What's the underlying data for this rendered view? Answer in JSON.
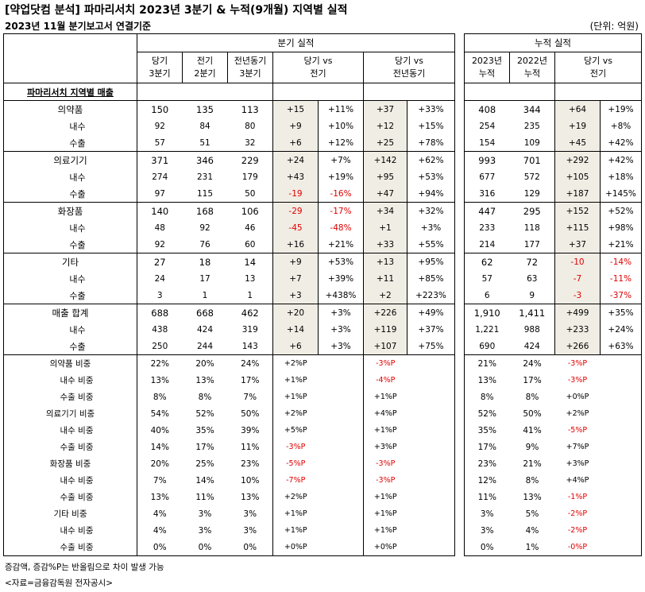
{
  "title": "[약업닷컴 분석] 파마리서치 2023년 3분기 & 누적(9개월) 지역별 실적",
  "subtitle": "2023년 11월 분기보고서 연결기준",
  "unit": "(단위: 억원)",
  "left_group_header": "분기 실적",
  "right_group_header": "누적 실적",
  "left_headers": [
    [
      "당기",
      "3분기"
    ],
    [
      "전기",
      "2분기"
    ],
    [
      "전년동기",
      "3분기"
    ],
    [
      "당기 vs",
      "전기"
    ],
    [
      "당기 vs",
      "전년동기"
    ]
  ],
  "right_headers": [
    [
      "2023년",
      "누적"
    ],
    [
      "2022년",
      "누적"
    ],
    [
      "당기 vs",
      "전기"
    ]
  ],
  "section_title": "파마리서치 지역별 매출",
  "rows": [
    {
      "label": "의약품",
      "main": true,
      "q": [
        "150",
        "135",
        "113"
      ],
      "qp": [
        "+15",
        "+11%"
      ],
      "qy": [
        "+37",
        "+33%"
      ],
      "c": [
        "408",
        "344"
      ],
      "cd": [
        "+64",
        "+19%"
      ]
    },
    {
      "label": "내수",
      "main": false,
      "q": [
        "92",
        "84",
        "80"
      ],
      "qp": [
        "+9",
        "+10%"
      ],
      "qy": [
        "+12",
        "+15%"
      ],
      "c": [
        "254",
        "235"
      ],
      "cd": [
        "+19",
        "+8%"
      ]
    },
    {
      "label": "수출",
      "main": false,
      "q": [
        "57",
        "51",
        "32"
      ],
      "qp": [
        "+6",
        "+12%"
      ],
      "qy": [
        "+25",
        "+78%"
      ],
      "c": [
        "154",
        "109"
      ],
      "cd": [
        "+45",
        "+42%"
      ]
    },
    {
      "label": "의료기기",
      "main": true,
      "q": [
        "371",
        "346",
        "229"
      ],
      "qp": [
        "+24",
        "+7%"
      ],
      "qy": [
        "+142",
        "+62%"
      ],
      "c": [
        "993",
        "701"
      ],
      "cd": [
        "+292",
        "+42%"
      ]
    },
    {
      "label": "내수",
      "main": false,
      "q": [
        "274",
        "231",
        "179"
      ],
      "qp": [
        "+43",
        "+19%"
      ],
      "qy": [
        "+95",
        "+53%"
      ],
      "c": [
        "677",
        "572"
      ],
      "cd": [
        "+105",
        "+18%"
      ]
    },
    {
      "label": "수출",
      "main": false,
      "q": [
        "97",
        "115",
        "50"
      ],
      "qp": [
        "-19",
        "-16%"
      ],
      "qy": [
        "+47",
        "+94%"
      ],
      "c": [
        "316",
        "129"
      ],
      "cd": [
        "+187",
        "+145%"
      ]
    },
    {
      "label": "화장품",
      "main": true,
      "q": [
        "140",
        "168",
        "106"
      ],
      "qp": [
        "-29",
        "-17%"
      ],
      "qy": [
        "+34",
        "+32%"
      ],
      "c": [
        "447",
        "295"
      ],
      "cd": [
        "+152",
        "+52%"
      ]
    },
    {
      "label": "내수",
      "main": false,
      "q": [
        "48",
        "92",
        "46"
      ],
      "qp": [
        "-45",
        "-48%"
      ],
      "qy": [
        "+1",
        "+3%"
      ],
      "c": [
        "233",
        "118"
      ],
      "cd": [
        "+115",
        "+98%"
      ]
    },
    {
      "label": "수출",
      "main": false,
      "q": [
        "92",
        "76",
        "60"
      ],
      "qp": [
        "+16",
        "+21%"
      ],
      "qy": [
        "+33",
        "+55%"
      ],
      "c": [
        "214",
        "177"
      ],
      "cd": [
        "+37",
        "+21%"
      ]
    },
    {
      "label": "기타",
      "main": true,
      "q": [
        "27",
        "18",
        "14"
      ],
      "qp": [
        "+9",
        "+53%"
      ],
      "qy": [
        "+13",
        "+95%"
      ],
      "c": [
        "62",
        "72"
      ],
      "cd": [
        "-10",
        "-14%"
      ]
    },
    {
      "label": "내수",
      "main": false,
      "q": [
        "24",
        "17",
        "13"
      ],
      "qp": [
        "+7",
        "+39%"
      ],
      "qy": [
        "+11",
        "+85%"
      ],
      "c": [
        "57",
        "63"
      ],
      "cd": [
        "-7",
        "-11%"
      ]
    },
    {
      "label": "수출",
      "main": false,
      "q": [
        "3",
        "1",
        "1"
      ],
      "qp": [
        "+3",
        "+438%"
      ],
      "qy": [
        "+2",
        "+223%"
      ],
      "c": [
        "6",
        "9"
      ],
      "cd": [
        "-3",
        "-37%"
      ]
    },
    {
      "label": "매출 합계",
      "main": true,
      "q": [
        "688",
        "668",
        "462"
      ],
      "qp": [
        "+20",
        "+3%"
      ],
      "qy": [
        "+226",
        "+49%"
      ],
      "c": [
        "1,910",
        "1,411"
      ],
      "cd": [
        "+499",
        "+35%"
      ]
    },
    {
      "label": "내수",
      "main": false,
      "q": [
        "438",
        "424",
        "319"
      ],
      "qp": [
        "+14",
        "+3%"
      ],
      "qy": [
        "+119",
        "+37%"
      ],
      "c": [
        "1,221",
        "988"
      ],
      "cd": [
        "+233",
        "+24%"
      ]
    },
    {
      "label": "수출",
      "main": false,
      "q": [
        "250",
        "244",
        "143"
      ],
      "qp": [
        "+6",
        "+3%"
      ],
      "qy": [
        "+107",
        "+75%"
      ],
      "c": [
        "690",
        "424"
      ],
      "cd": [
        "+266",
        "+63%"
      ]
    }
  ],
  "ratio_rows": [
    {
      "label": "의약품 비중",
      "main": true,
      "q": [
        "22%",
        "20%",
        "24%"
      ],
      "qp": "+2%P",
      "qy": "-3%P",
      "c": [
        "21%",
        "24%"
      ],
      "cd": "-3%P"
    },
    {
      "label": "내수 비중",
      "main": false,
      "q": [
        "13%",
        "13%",
        "17%"
      ],
      "qp": "+1%P",
      "qy": "-4%P",
      "c": [
        "13%",
        "17%"
      ],
      "cd": "-3%P"
    },
    {
      "label": "수출 비중",
      "main": false,
      "q": [
        "8%",
        "8%",
        "7%"
      ],
      "qp": "+1%P",
      "qy": "+1%P",
      "c": [
        "8%",
        "8%"
      ],
      "cd": "+0%P"
    },
    {
      "label": "의료기기 비중",
      "main": true,
      "q": [
        "54%",
        "52%",
        "50%"
      ],
      "qp": "+2%P",
      "qy": "+4%P",
      "c": [
        "52%",
        "50%"
      ],
      "cd": "+2%P"
    },
    {
      "label": "내수 비중",
      "main": false,
      "q": [
        "40%",
        "35%",
        "39%"
      ],
      "qp": "+5%P",
      "qy": "+1%P",
      "c": [
        "35%",
        "41%"
      ],
      "cd": "-5%P"
    },
    {
      "label": "수출 비중",
      "main": false,
      "q": [
        "14%",
        "17%",
        "11%"
      ],
      "qp": "-3%P",
      "qy": "+3%P",
      "c": [
        "17%",
        "9%"
      ],
      "cd": "+7%P"
    },
    {
      "label": "화장품 비중",
      "main": true,
      "q": [
        "20%",
        "25%",
        "23%"
      ],
      "qp": "-5%P",
      "qy": "-3%P",
      "c": [
        "23%",
        "21%"
      ],
      "cd": "+3%P"
    },
    {
      "label": "내수 비중",
      "main": false,
      "q": [
        "7%",
        "14%",
        "10%"
      ],
      "qp": "-7%P",
      "qy": "-3%P",
      "c": [
        "12%",
        "8%"
      ],
      "cd": "+4%P"
    },
    {
      "label": "수출 비중",
      "main": false,
      "q": [
        "13%",
        "11%",
        "13%"
      ],
      "qp": "+2%P",
      "qy": "+1%P",
      "c": [
        "11%",
        "13%"
      ],
      "cd": "-1%P"
    },
    {
      "label": "기타 비중",
      "main": true,
      "q": [
        "4%",
        "3%",
        "3%"
      ],
      "qp": "+1%P",
      "qy": "+1%P",
      "c": [
        "3%",
        "5%"
      ],
      "cd": "-2%P"
    },
    {
      "label": "내수 비중",
      "main": false,
      "q": [
        "4%",
        "3%",
        "3%"
      ],
      "qp": "+1%P",
      "qy": "+1%P",
      "c": [
        "3%",
        "4%"
      ],
      "cd": "-2%P"
    },
    {
      "label": "수출 비중",
      "main": false,
      "q": [
        "0%",
        "0%",
        "0%"
      ],
      "qp": "+0%P",
      "qy": "+0%P",
      "c": [
        "0%",
        "1%"
      ],
      "cd": "-0%P"
    }
  ],
  "footnote1": "증감액, 증감%P는 반올림으로 차이 발생 가능",
  "footnote2": "<자료=금융감독원 전자공시>",
  "colors": {
    "negative": "#e00000",
    "highlight": "#f0ede4",
    "border": "#000000"
  }
}
